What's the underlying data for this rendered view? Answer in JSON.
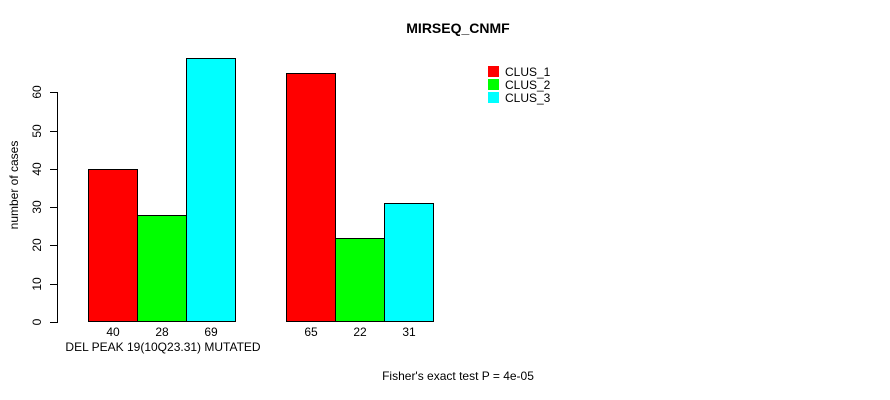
{
  "title": "MIRSEQ_CNMF",
  "y_axis": {
    "label": "number of cases",
    "ticks": [
      "0",
      "10",
      "20",
      "30",
      "40",
      "50",
      "60"
    ]
  },
  "x_axis": {
    "group_label": "DEL PEAK 19(10Q23.31) MUTATED"
  },
  "footer": "Fisher's exact test P = 4e-05",
  "legend": [
    {
      "label": "CLUS_1",
      "color": "#ff0000"
    },
    {
      "label": "CLUS_2",
      "color": "#00ff00"
    },
    {
      "label": "CLUS_3",
      "color": "#00ffff"
    }
  ],
  "chart_data": {
    "type": "bar",
    "title": "MIRSEQ_CNMF",
    "ylabel": "number of cases",
    "xlabel": "DEL PEAK 19(10Q23.31) MUTATED",
    "groups": [
      "DEL PEAK 19(10Q23.31) MUTATED",
      ""
    ],
    "series": [
      {
        "name": "CLUS_1",
        "color": "#ff0000",
        "values": [
          40,
          65
        ]
      },
      {
        "name": "CLUS_2",
        "color": "#00ff00",
        "values": [
          28,
          22
        ]
      },
      {
        "name": "CLUS_3",
        "color": "#00ffff",
        "values": [
          69,
          31
        ]
      }
    ],
    "bar_value_labels": [
      [
        40,
        28,
        69
      ],
      [
        65,
        22,
        31
      ]
    ],
    "yticks": [
      0,
      10,
      20,
      30,
      40,
      50,
      60
    ],
    "ylim": [
      0,
      69
    ],
    "grid": false,
    "legend_position": "top-right",
    "annotation": "Fisher's exact test P = 4e-05"
  }
}
